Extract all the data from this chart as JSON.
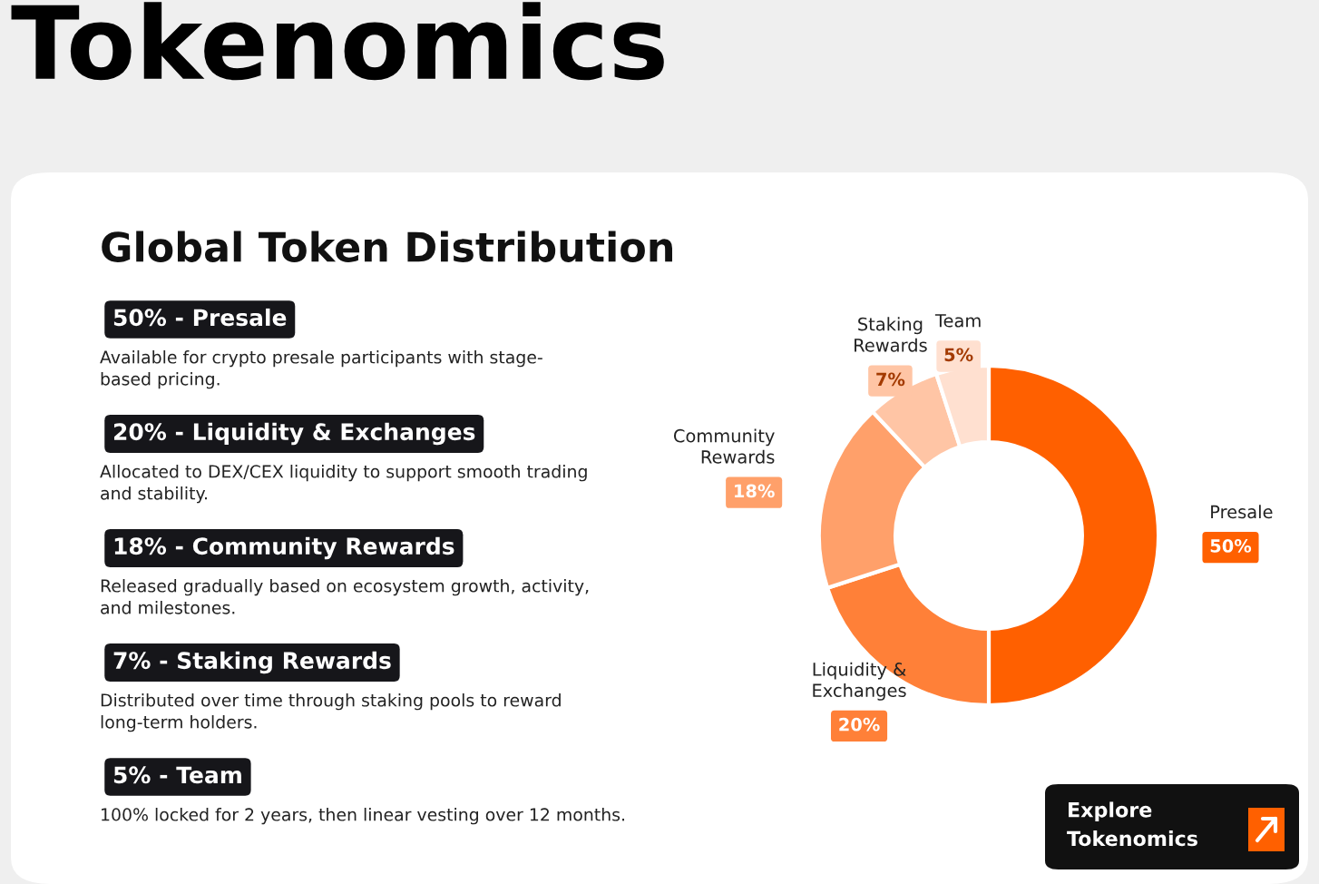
{
  "chart_data": {
    "type": "donut",
    "title": "Tokenomics",
    "subtitle": "Global Token Distribution",
    "categories": [
      "Presale",
      "Liquidity &\nExchanges",
      "Community\nRewards",
      "Staking\nRewards",
      "Team"
    ],
    "values": [
      50,
      20,
      18,
      7,
      5
    ],
    "value_labels": [
      "50%",
      "20%",
      "18%",
      "7%",
      "5%"
    ],
    "colors": [
      "#ff6000",
      "#ff8038",
      "#ffa06a",
      "#ffc5a5",
      "#ffe0d0"
    ],
    "legend": false,
    "annotations": [
      "50% - Presale",
      "Available for crypto presale participants with stage-\nbased pricing.",
      "20% - Liquidity & Exchanges",
      "Allocated to DEX/CEX liquidity to support smooth trading\nand stability.",
      "18% - Community Rewards",
      "Released gradually based on ecosystem growth, activity,\nand milestones.",
      "7% - Staking Rewards",
      "Distributed over time through staking pools to reward\nlong-term holders.",
      "5% - Team",
      "100% locked for 2 years, then linear vesting over 12 months.",
      "Explore\nTokenomics"
    ]
  }
}
